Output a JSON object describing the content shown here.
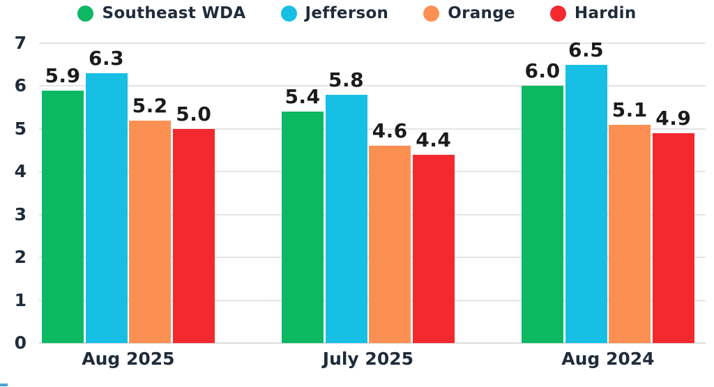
{
  "chart_data": {
    "type": "bar",
    "categories": [
      "Aug 2025",
      "July 2025",
      "Aug 2024"
    ],
    "series": [
      {
        "name": "Southeast WDA",
        "color": "#0db863",
        "values": [
          5.9,
          5.4,
          6.0
        ]
      },
      {
        "name": "Jefferson",
        "color": "#17bfe4",
        "values": [
          6.3,
          5.8,
          6.5
        ]
      },
      {
        "name": "Orange",
        "color": "#fb9052",
        "values": [
          5.2,
          4.6,
          5.1
        ]
      },
      {
        "name": "Hardin",
        "color": "#f4292f",
        "values": [
          5.0,
          4.4,
          4.9
        ]
      }
    ],
    "title": "",
    "xlabel": "",
    "ylabel": "",
    "ylim": [
      0,
      7
    ],
    "yticks": [
      0,
      1,
      2,
      3,
      4,
      5,
      6,
      7
    ],
    "grid": true,
    "legend_position": "top",
    "value_labels": true,
    "value_label_format": "one-decimal"
  },
  "legend": {
    "items": [
      {
        "label": "Southeast WDA",
        "color": "#0db863"
      },
      {
        "label": "Jefferson",
        "color": "#17bfe4"
      },
      {
        "label": "Orange",
        "color": "#fb9052"
      },
      {
        "label": "Hardin",
        "color": "#f4292f"
      }
    ]
  },
  "colors": {
    "text": "#1f2c3a",
    "value_label_text": "#1b1b1b",
    "grid": "#e4e4e4",
    "baseline": "#dcdcdc",
    "background": "#ffffff",
    "corner_artifact": "#4aa3d8"
  }
}
